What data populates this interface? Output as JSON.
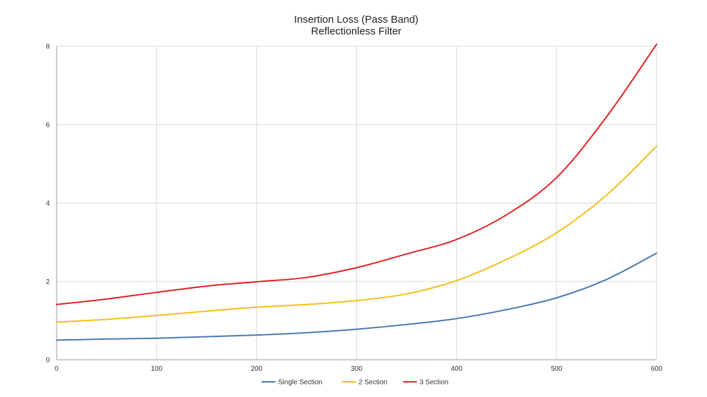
{
  "chart_data": {
    "type": "line",
    "title": "Insertion Loss (Pass Band)",
    "subtitle": "Reflectionless Filter",
    "xlabel": "",
    "ylabel": "",
    "xlim": [
      0,
      600
    ],
    "ylim": [
      0,
      8
    ],
    "x_ticks": [
      0,
      100,
      200,
      300,
      400,
      500,
      600
    ],
    "y_ticks": [
      0,
      2,
      4,
      6,
      8
    ],
    "grid": true,
    "legend_position": "bottom",
    "x": [
      0,
      50,
      100,
      150,
      200,
      250,
      300,
      350,
      400,
      450,
      500,
      550,
      600
    ],
    "series": [
      {
        "name": "Single Section",
        "color": "#4a76b0",
        "values": [
          0.5,
          0.53,
          0.55,
          0.59,
          0.63,
          0.69,
          0.78,
          0.9,
          1.05,
          1.28,
          1.58,
          2.05,
          2.72
        ]
      },
      {
        "name": "2 Section",
        "color": "#f2bf16",
        "values": [
          0.96,
          1.03,
          1.13,
          1.24,
          1.34,
          1.41,
          1.51,
          1.68,
          2.02,
          2.56,
          3.24,
          4.2,
          5.45
        ]
      },
      {
        "name": "3 Section",
        "color": "#e02020",
        "values": [
          1.41,
          1.55,
          1.72,
          1.88,
          1.99,
          2.1,
          2.35,
          2.7,
          3.07,
          3.7,
          4.65,
          6.2,
          8.05
        ]
      }
    ]
  }
}
